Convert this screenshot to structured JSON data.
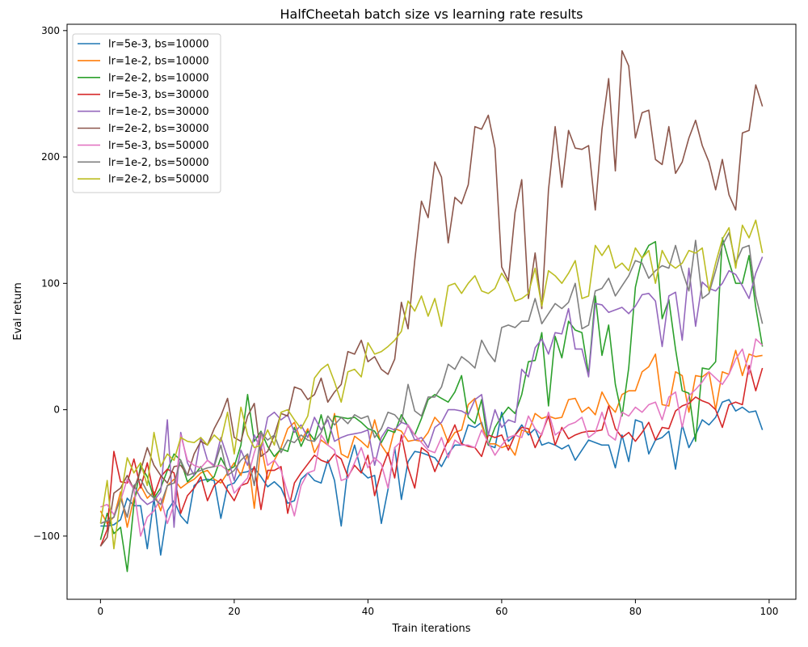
{
  "chart_data": {
    "type": "line",
    "title": "HalfCheetah batch size vs learning rate results",
    "xlabel": "Train iterations",
    "ylabel": "Eval return",
    "xlim": [
      -5,
      104
    ],
    "ylim": [
      -150,
      305
    ],
    "xticks": [
      0,
      20,
      40,
      60,
      80,
      100
    ],
    "yticks": [
      -100,
      0,
      100,
      200,
      300
    ],
    "grid": false,
    "legend_position": "top-left",
    "x": [
      0,
      1,
      2,
      3,
      4,
      5,
      6,
      7,
      8,
      9,
      10,
      11,
      12,
      13,
      14,
      15,
      16,
      17,
      18,
      19,
      20,
      21,
      22,
      23,
      24,
      25,
      26,
      27,
      28,
      29,
      30,
      31,
      32,
      33,
      34,
      35,
      36,
      37,
      38,
      39,
      40,
      41,
      42,
      43,
      44,
      45,
      46,
      47,
      48,
      49,
      50,
      51,
      52,
      53,
      54,
      55,
      56,
      57,
      58,
      59,
      60,
      61,
      62,
      63,
      64,
      65,
      66,
      67,
      68,
      69,
      70,
      71,
      72,
      73,
      74,
      75,
      76,
      77,
      78,
      79,
      80,
      81,
      82,
      83,
      84,
      85,
      86,
      87,
      88,
      89,
      90,
      91,
      92,
      93,
      94,
      95,
      96,
      97,
      98,
      99
    ],
    "series": [
      {
        "name": "lr=5e-3, bs=10000",
        "color": "#1f77b4",
        "values": [
          -92,
          -92,
          -91,
          -87,
          -70,
          -76,
          -76,
          -110,
          -70,
          -115,
          -80,
          -72,
          -84,
          -90,
          -60,
          -56,
          -55,
          -56,
          -86,
          -60,
          -58,
          -50,
          -49,
          -46,
          -53,
          -61,
          -57,
          -62,
          -74,
          -72,
          -55,
          -50,
          -56,
          -58,
          -40,
          -56,
          -92,
          -46,
          -28,
          -49,
          -54,
          -52,
          -90,
          -63,
          -30,
          -71,
          -41,
          -33,
          -34,
          -36,
          -38,
          -45,
          -35,
          -28,
          -28,
          -12,
          -14,
          -10,
          -28,
          -30,
          -2,
          -25,
          -20,
          -12,
          -20,
          -15,
          -28,
          -26,
          -28,
          -31,
          -28,
          -40,
          -32,
          -24,
          -26,
          -28,
          -28,
          -46,
          -20,
          -41,
          -8,
          -10,
          -35,
          -24,
          -22,
          -17,
          -47,
          -12,
          -30,
          -20,
          -8,
          -12,
          -6,
          6,
          8,
          -1,
          2,
          -2,
          -1,
          -16
        ]
      },
      {
        "name": "lr=1e-2, bs=10000",
        "color": "#ff7f0e",
        "values": [
          -80,
          -90,
          -85,
          -65,
          -93,
          -70,
          -60,
          -70,
          -65,
          -80,
          -60,
          -55,
          -62,
          -58,
          -55,
          -50,
          -48,
          -55,
          -58,
          -50,
          -42,
          -52,
          -35,
          -78,
          -28,
          -55,
          -40,
          -30,
          -15,
          -10,
          -25,
          -15,
          -34,
          -24,
          -28,
          -3,
          -35,
          -38,
          -21,
          -25,
          -30,
          -8,
          -28,
          -36,
          -15,
          -17,
          -25,
          -24,
          -25,
          -18,
          -6,
          -12,
          -26,
          -18,
          -16,
          4,
          9,
          -12,
          -27,
          -27,
          -30,
          -28,
          -36,
          -16,
          -18,
          -3,
          -7,
          -5,
          -7,
          -6,
          8,
          9,
          -2,
          2,
          -4,
          14,
          4,
          -2,
          12,
          15,
          15,
          30,
          34,
          44,
          4,
          3,
          30,
          27,
          -2,
          27,
          26,
          30,
          0,
          30,
          28,
          47,
          27,
          44,
          42,
          43
        ]
      },
      {
        "name": "lr=2e-2, bs=10000",
        "color": "#2ca02c",
        "values": [
          -103,
          -82,
          -98,
          -93,
          -128,
          -75,
          -44,
          -53,
          -70,
          -62,
          -48,
          -35,
          -40,
          -57,
          -52,
          -45,
          -57,
          -53,
          -38,
          -48,
          -45,
          -28,
          12,
          -25,
          -17,
          -29,
          -37,
          -31,
          -33,
          -14,
          -29,
          -17,
          -24,
          -4,
          -26,
          -5,
          -6,
          -7,
          -6,
          -10,
          -15,
          -17,
          -26,
          -16,
          -18,
          -4,
          -13,
          -20,
          -7,
          8,
          12,
          9,
          6,
          14,
          27,
          -6,
          -11,
          8,
          -28,
          -14,
          -5,
          2,
          -3,
          12,
          38,
          39,
          61,
          3,
          58,
          41,
          70,
          63,
          61,
          28,
          90,
          43,
          67,
          20,
          -5,
          33,
          97,
          120,
          130,
          133,
          72,
          87,
          48,
          15,
          13,
          -25,
          33,
          32,
          38,
          136,
          117,
          100,
          100,
          122,
          81,
          50
        ]
      },
      {
        "name": "lr=5e-3, bs=30000",
        "color": "#d62728",
        "values": [
          -108,
          -95,
          -33,
          -57,
          -58,
          -39,
          -62,
          -42,
          -68,
          -53,
          -47,
          -50,
          -82,
          -68,
          -62,
          -53,
          -72,
          -60,
          -55,
          -64,
          -72,
          -60,
          -58,
          -45,
          -79,
          -48,
          -48,
          -45,
          -82,
          -58,
          -50,
          -43,
          -36,
          -40,
          -42,
          -35,
          -39,
          -53,
          -44,
          -50,
          -36,
          -68,
          -48,
          -34,
          -54,
          -20,
          -46,
          -62,
          -30,
          -34,
          -49,
          -36,
          -24,
          -12,
          -27,
          -29,
          -30,
          -37,
          -20,
          -22,
          -20,
          -32,
          -20,
          -14,
          -15,
          -30,
          -19,
          -5,
          -28,
          -14,
          -23,
          -20,
          -18,
          -17,
          -17,
          -16,
          3,
          -15,
          -22,
          -18,
          -25,
          -18,
          -10,
          -24,
          -14,
          -15,
          -1,
          3,
          5,
          10,
          7,
          5,
          0,
          -14,
          4,
          6,
          4,
          35,
          15,
          33
        ]
      },
      {
        "name": "lr=1e-2, bs=30000",
        "color": "#9467bd",
        "values": [
          -90,
          -88,
          -85,
          -70,
          -85,
          -60,
          -70,
          -75,
          -72,
          -65,
          -8,
          -93,
          -18,
          -42,
          -52,
          -22,
          -40,
          -44,
          -22,
          -38,
          -56,
          -32,
          -44,
          -20,
          -32,
          -6,
          -2,
          -8,
          -4,
          -18,
          -12,
          -22,
          -6,
          -16,
          -8,
          -25,
          -22,
          -20,
          -19,
          -18,
          -16,
          -44,
          -22,
          -14,
          -16,
          -10,
          -12,
          -24,
          -22,
          -30,
          -14,
          -10,
          0,
          0,
          -1,
          -4,
          8,
          12,
          -20,
          0,
          -14,
          -8,
          -10,
          32,
          26,
          49,
          56,
          44,
          61,
          60,
          80,
          48,
          48,
          26,
          84,
          83,
          77,
          79,
          81,
          76,
          82,
          91,
          92,
          86,
          50,
          90,
          93,
          55,
          112,
          66,
          101,
          96,
          94,
          100,
          110,
          107,
          98,
          88,
          108,
          121
        ]
      },
      {
        "name": "lr=2e-2, bs=30000",
        "color": "#8c564b",
        "values": [
          -108,
          -101,
          -66,
          -62,
          -52,
          -63,
          -48,
          -30,
          -44,
          -52,
          -58,
          -45,
          -44,
          -52,
          -35,
          -25,
          -28,
          -15,
          -5,
          9,
          -22,
          -25,
          -5,
          5,
          -37,
          -33,
          -20,
          -3,
          -5,
          18,
          16,
          8,
          12,
          25,
          6,
          14,
          20,
          46,
          44,
          55,
          38,
          42,
          32,
          28,
          40,
          85,
          64,
          118,
          165,
          152,
          196,
          184,
          132,
          168,
          163,
          178,
          224,
          222,
          233,
          207,
          113,
          102,
          156,
          182,
          88,
          124,
          80,
          174,
          224,
          176,
          221,
          207,
          206,
          209,
          158,
          222,
          262,
          189,
          284,
          272,
          215,
          235,
          237,
          198,
          194,
          224,
          187,
          196,
          215,
          229,
          209,
          196,
          174,
          198,
          170,
          158,
          219,
          221,
          257,
          240
        ]
      },
      {
        "name": "lr=5e-3, bs=50000",
        "color": "#e377c2",
        "values": [
          -77,
          -75,
          -83,
          -72,
          -55,
          -63,
          -100,
          -85,
          -80,
          -70,
          -90,
          -75,
          -20,
          -40,
          -44,
          -46,
          -40,
          -45,
          -44,
          -48,
          -66,
          -60,
          -54,
          -34,
          -18,
          -44,
          -40,
          -48,
          -66,
          -84,
          -60,
          -50,
          -48,
          -20,
          -28,
          -32,
          -56,
          -54,
          -42,
          -30,
          -46,
          -38,
          -43,
          -62,
          -30,
          -25,
          -12,
          -20,
          -26,
          -32,
          -34,
          -22,
          -38,
          -24,
          -28,
          -28,
          -30,
          -16,
          -26,
          -36,
          -28,
          -22,
          -20,
          -22,
          -5,
          -15,
          -20,
          -2,
          -20,
          -16,
          -12,
          -10,
          -6,
          -22,
          -18,
          -2,
          -20,
          -24,
          -2,
          -5,
          2,
          -2,
          4,
          6,
          -8,
          10,
          14,
          -14,
          11,
          16,
          22,
          30,
          25,
          20,
          28,
          40,
          48,
          28,
          56,
          51
        ]
      },
      {
        "name": "lr=1e-2, bs=50000",
        "color": "#7f7f7f",
        "values": [
          -90,
          -88,
          -85,
          -70,
          -85,
          -60,
          -55,
          -65,
          -70,
          -75,
          -60,
          -58,
          -40,
          -52,
          -50,
          -48,
          -46,
          -45,
          -28,
          -52,
          -48,
          -40,
          -35,
          -60,
          -18,
          -24,
          -20,
          -34,
          -24,
          -26,
          -20,
          -24,
          -25,
          -18,
          -5,
          -12,
          -6,
          -11,
          -4,
          -7,
          -5,
          -22,
          -15,
          -2,
          -4,
          -10,
          20,
          -1,
          -5,
          10,
          10,
          18,
          36,
          32,
          42,
          38,
          33,
          55,
          45,
          38,
          65,
          67,
          65,
          70,
          70,
          88,
          68,
          76,
          84,
          80,
          85,
          100,
          64,
          67,
          94,
          96,
          104,
          90,
          98,
          106,
          118,
          116,
          104,
          110,
          114,
          112,
          130,
          110,
          94,
          134,
          88,
          92,
          110,
          130,
          140,
          116,
          128,
          130,
          90,
          68
        ]
      },
      {
        "name": "lr=2e-2, bs=50000",
        "color": "#bcbd22",
        "values": [
          -90,
          -56,
          -110,
          -70,
          -38,
          -50,
          -42,
          -60,
          -18,
          -45,
          -35,
          -40,
          -22,
          -25,
          -26,
          -22,
          -28,
          -20,
          -25,
          -2,
          -35,
          2,
          -20,
          -30,
          -28,
          -16,
          -28,
          -2,
          0,
          -8,
          -15,
          -5,
          25,
          32,
          36,
          22,
          6,
          30,
          32,
          26,
          53,
          44,
          46,
          50,
          55,
          62,
          86,
          78,
          90,
          74,
          88,
          66,
          98,
          100,
          92,
          100,
          106,
          94,
          92,
          96,
          108,
          100,
          86,
          88,
          92,
          112,
          82,
          110,
          106,
          100,
          108,
          118,
          88,
          90,
          130,
          122,
          130,
          112,
          116,
          110,
          128,
          120,
          126,
          100,
          126,
          116,
          112,
          116,
          126,
          124,
          128,
          94,
          116,
          135,
          144,
          112,
          146,
          136,
          150,
          124
        ]
      }
    ]
  }
}
